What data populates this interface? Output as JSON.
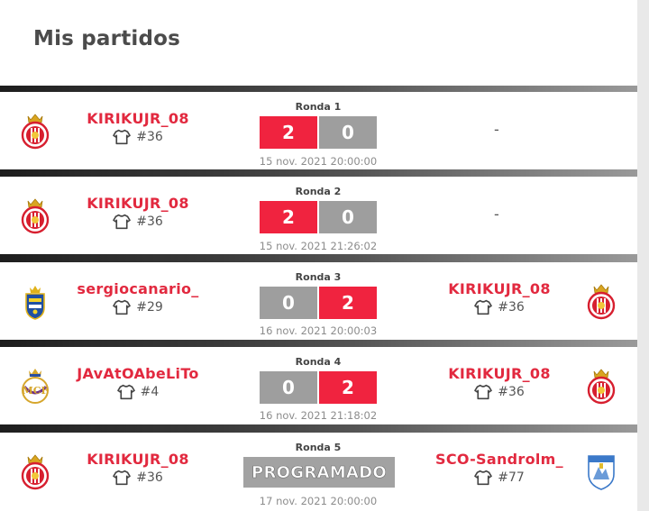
{
  "page": {
    "title": "Mis partidos"
  },
  "matches": [
    {
      "round": "Ronda 1",
      "home": {
        "name": "KIRIKUJR_08",
        "number": "#36",
        "crest": "girona-crest-icon"
      },
      "away": {
        "name": "",
        "number": "",
        "placeholder": "-"
      },
      "score": {
        "home": "2",
        "away": "0"
      },
      "date": "15 nov. 2021 20:00:00"
    },
    {
      "round": "Ronda 2",
      "home": {
        "name": "KIRIKUJR_08",
        "number": "#36",
        "crest": "girona-crest-icon"
      },
      "away": {
        "name": "",
        "number": "",
        "placeholder": "-"
      },
      "score": {
        "home": "2",
        "away": "0"
      },
      "date": "15 nov. 2021 21:26:02"
    },
    {
      "round": "Ronda 3",
      "home": {
        "name": "sergiocanario_",
        "number": "#29",
        "crest": "las-palmas-crest-icon"
      },
      "away": {
        "name": "KIRIKUJR_08",
        "number": "#36",
        "crest": "girona-crest-icon"
      },
      "score": {
        "home": "0",
        "away": "2"
      },
      "date": "16 nov. 2021 20:00:03"
    },
    {
      "round": "Ronda 4",
      "home": {
        "name": "JAvAtOAbeLiTo",
        "number": "#4",
        "crest": "real-madrid-crest-icon"
      },
      "away": {
        "name": "KIRIKUJR_08",
        "number": "#36",
        "crest": "girona-crest-icon"
      },
      "score": {
        "home": "0",
        "away": "2"
      },
      "date": "16 nov. 2021 21:18:02"
    },
    {
      "round": "Ronda 5",
      "home": {
        "name": "KIRIKUJR_08",
        "number": "#36",
        "crest": "girona-crest-icon"
      },
      "away": {
        "name": "SCO-Sandrolm_",
        "number": "#77",
        "crest": "malaga-crest-icon"
      },
      "status": "PROGRAMADO",
      "date": "17 nov. 2021 20:00:00"
    }
  ],
  "colors": {
    "accent": "#e2293f",
    "win": "#f0233f",
    "lose": "#9e9e9e"
  }
}
